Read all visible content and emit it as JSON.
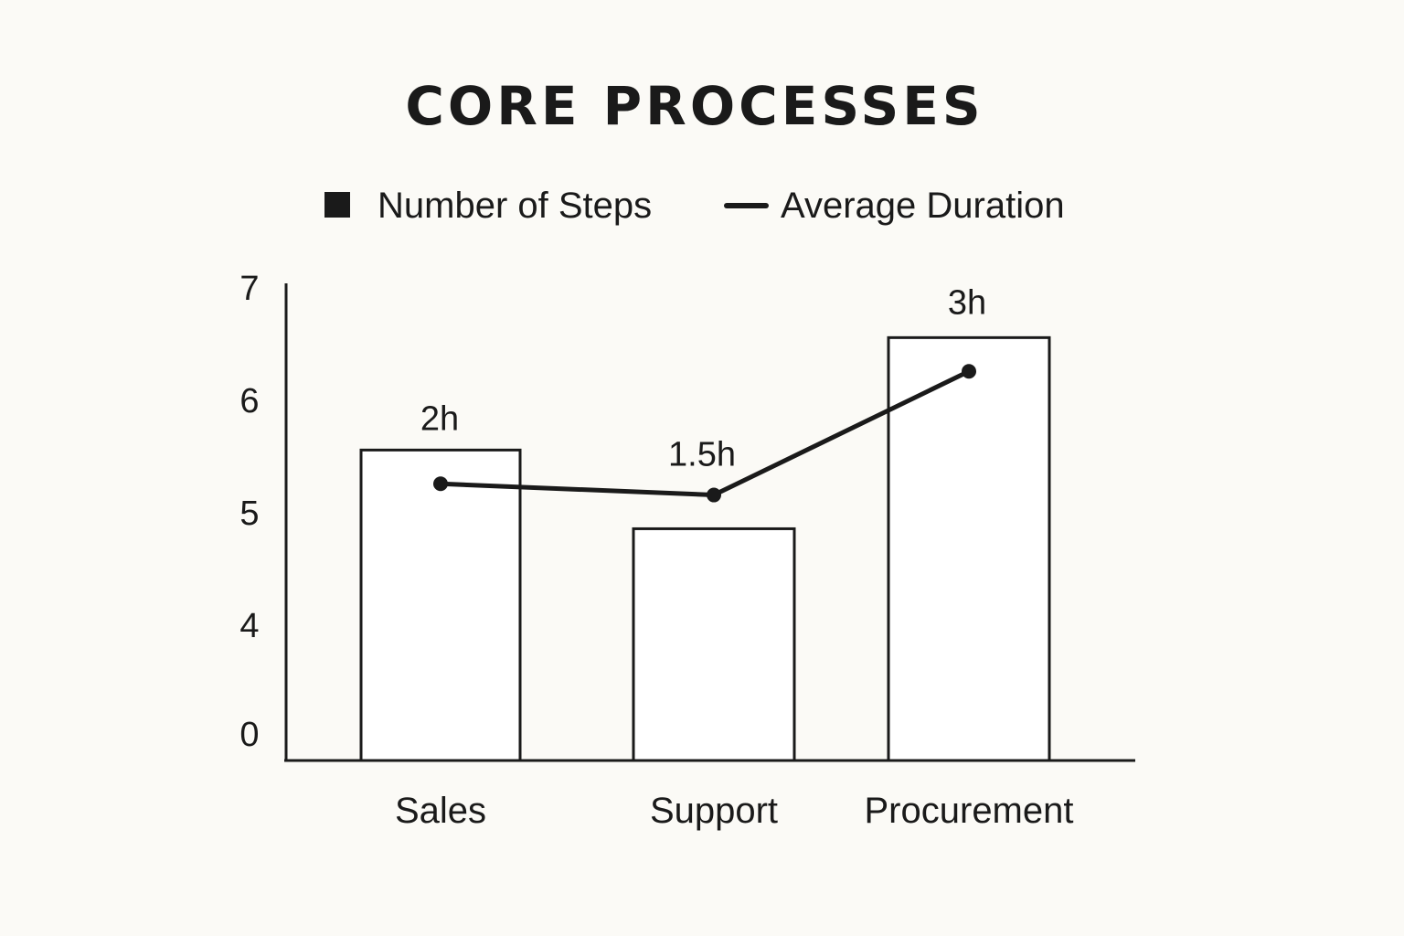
{
  "chart_data": {
    "type": "bar",
    "title": "CORE PROCESSES",
    "categories": [
      "Sales",
      "Support",
      "Procurement"
    ],
    "y_ticks": [
      "7",
      "6",
      "5",
      "4",
      "0"
    ],
    "series": [
      {
        "name": "Number of Steps",
        "kind": "bar",
        "values": [
          5.55,
          4.85,
          6.55
        ]
      },
      {
        "name": "Average Duration",
        "kind": "line",
        "values": [
          5.25,
          5.15,
          6.25
        ],
        "labels": [
          "2h",
          "1.5h",
          "3h"
        ]
      }
    ],
    "legend_position": "top",
    "grid": false,
    "colors": {
      "ink": "#1a1a1a",
      "bar_fill": "#ffffff",
      "background": "#fbfaf6"
    }
  }
}
